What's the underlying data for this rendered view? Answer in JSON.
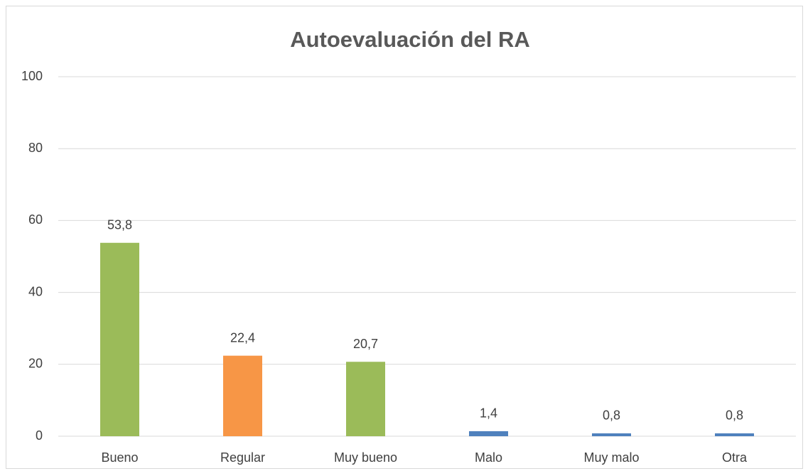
{
  "chart_data": {
    "type": "bar",
    "title": "Autoevaluación del RA",
    "categories": [
      "Bueno",
      "Regular",
      "Muy bueno",
      "Malo",
      "Muy malo",
      "Otra"
    ],
    "values": [
      53.8,
      22.4,
      20.7,
      1.4,
      0.8,
      0.8
    ],
    "value_labels": [
      "53,8",
      "22,4",
      "20,7",
      "1,4",
      "0,8",
      "0,8"
    ],
    "colors": [
      "#9bbb59",
      "#f79646",
      "#9bbb59",
      "#4f81bd",
      "#4f81bd",
      "#4f81bd"
    ],
    "ylim": [
      0,
      100
    ],
    "yticks": [
      0,
      20,
      40,
      60,
      80,
      100
    ],
    "grid": true
  }
}
